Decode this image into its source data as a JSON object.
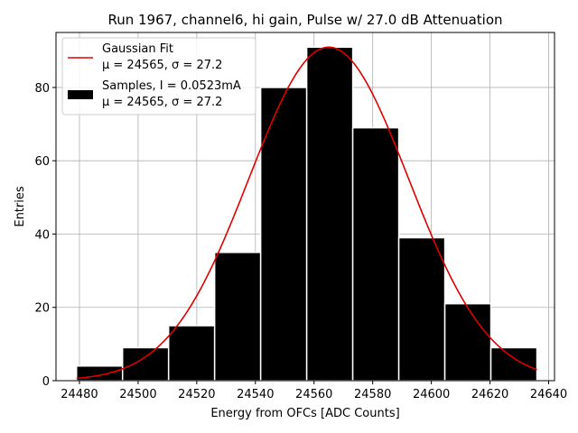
{
  "chart_data": {
    "type": "bar",
    "title": "Run 1967, channel6, hi gain, Pulse w/ 27.0 dB Attenuation",
    "xlabel": "Energy from OFCs [ADC Counts]",
    "ylabel": "Entries",
    "xlim": [
      24472,
      24642
    ],
    "ylim": [
      0,
      95
    ],
    "grid": true,
    "legend_position": "top-left",
    "xticks": [
      "24480",
      "24500",
      "24520",
      "24540",
      "24560",
      "24580",
      "24600",
      "24620",
      "24640"
    ],
    "yticks": [
      "0",
      "20",
      "40",
      "60",
      "80"
    ],
    "bins": [
      {
        "x0": 24479,
        "x1": 24494.7,
        "count": 4
      },
      {
        "x0": 24494.7,
        "x1": 24510.4,
        "count": 9
      },
      {
        "x0": 24510.4,
        "x1": 24526.1,
        "count": 15
      },
      {
        "x0": 24526.1,
        "x1": 24541.8,
        "count": 35
      },
      {
        "x0": 24541.8,
        "x1": 24557.5,
        "count": 80
      },
      {
        "x0": 24557.5,
        "x1": 24573.2,
        "count": 91
      },
      {
        "x0": 24573.2,
        "x1": 24588.9,
        "count": 69
      },
      {
        "x0": 24588.9,
        "x1": 24604.6,
        "count": 39
      },
      {
        "x0": 24604.6,
        "x1": 24620.3,
        "count": 21
      },
      {
        "x0": 24620.3,
        "x1": 24636,
        "count": 9
      }
    ],
    "fit": {
      "mu": 24565,
      "sigma": 27.2,
      "amplitude": 91,
      "x_range": [
        24479,
        24636
      ],
      "color": "#e00000"
    },
    "series": [
      {
        "name": "Gaussian Fit",
        "detail": "μ = 24565, σ = 27.2",
        "color": "#e00000"
      },
      {
        "name": "Samples, I = 0.0523mA",
        "detail": "μ = 24565, σ = 27.2",
        "color": "#000000"
      }
    ]
  }
}
